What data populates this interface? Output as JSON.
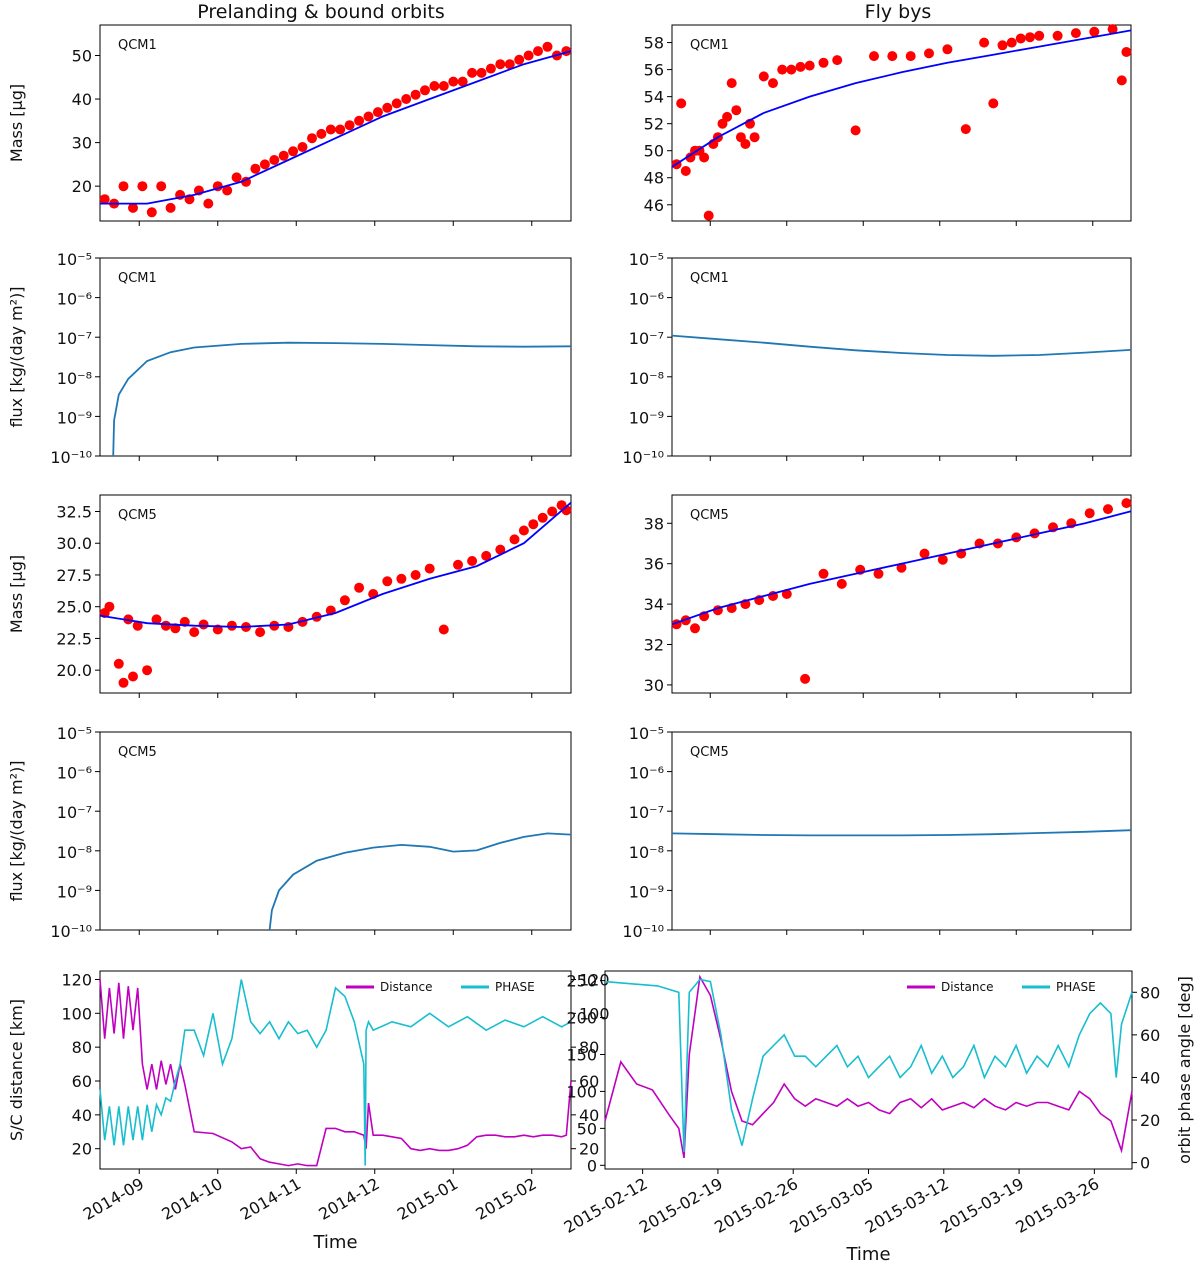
{
  "figure": {
    "col_titles": [
      "Prelanding & bound orbits",
      "Fly bys"
    ],
    "xlabel": "Time",
    "mass_ylabel": "Mass [µg]",
    "flux_ylabel": "flux [kg/(day m²)]",
    "flux_ytick_labels": [
      "10⁻⁵",
      "10⁻⁶",
      "10⁻⁷",
      "10⁻⁸",
      "10⁻⁹",
      "10⁻¹⁰"
    ],
    "dist_ylabel": "S/C distance [km]",
    "phase_ylabel": "orbit phase angle [deg]",
    "left_xticks": [
      "2014-09",
      "2014-10",
      "2014-11",
      "2014-12",
      "2015-01",
      "2015-02"
    ],
    "right_xticks": [
      "2015-02-12",
      "2015-02-19",
      "2015-02-26",
      "2015-03-05",
      "2015-03-12",
      "2015-03-19",
      "2015-03-26"
    ],
    "colors": {
      "scatter": "#ff0000",
      "fit": "#0000ff",
      "flux": "#1f77b4",
      "distance": "#c000c0",
      "phase": "#17becf"
    }
  },
  "chart_data": [
    {
      "id": "mass_qcm1_prelanding",
      "type": "scatter",
      "label": "QCM1",
      "ylabel": "Mass [µg]",
      "ylim": [
        12,
        57
      ],
      "yticks": [
        20,
        30,
        40,
        50
      ],
      "xlim": [
        0,
        100
      ],
      "scatter_x": [
        1,
        3,
        5,
        7,
        9,
        11,
        13,
        15,
        17,
        19,
        21,
        23,
        25,
        27,
        29,
        31,
        33,
        35,
        37,
        39,
        41,
        43,
        45,
        47,
        49,
        51,
        53,
        55,
        57,
        59,
        61,
        63,
        65,
        67,
        69,
        71,
        73,
        75,
        77,
        79,
        81,
        83,
        85,
        87,
        89,
        91,
        93,
        95,
        97,
        99
      ],
      "scatter_y": [
        17,
        16,
        20,
        15,
        20,
        14,
        20,
        15,
        18,
        17,
        19,
        16,
        20,
        19,
        22,
        21,
        24,
        25,
        26,
        27,
        28,
        29,
        31,
        32,
        33,
        33,
        34,
        35,
        36,
        37,
        38,
        39,
        40,
        41,
        42,
        43,
        43,
        44,
        44,
        46,
        46,
        47,
        48,
        48,
        49,
        50,
        51,
        52,
        50,
        51
      ],
      "fit": {
        "x": [
          0,
          10,
          20,
          30,
          40,
          50,
          60,
          70,
          80,
          90,
          100
        ],
        "y": [
          16,
          16,
          18,
          21,
          26,
          31,
          36,
          40,
          44,
          48,
          51
        ]
      }
    },
    {
      "id": "mass_qcm1_flybys",
      "type": "scatter",
      "label": "QCM1",
      "ylabel": "",
      "ylim": [
        44.8,
        59.3
      ],
      "yticks": [
        46,
        48,
        50,
        52,
        54,
        56,
        58
      ],
      "xlim": [
        0,
        100
      ],
      "scatter_x": [
        1,
        2,
        3,
        4,
        5,
        6,
        7,
        8,
        9,
        10,
        11,
        12,
        13,
        14,
        15,
        16,
        17,
        18,
        20,
        22,
        24,
        26,
        28,
        30,
        33,
        36,
        40,
        44,
        48,
        52,
        56,
        60,
        64,
        68,
        70,
        72,
        74,
        76,
        78,
        80,
        84,
        88,
        92,
        96,
        98,
        99
      ],
      "scatter_y": [
        49,
        53.5,
        48.5,
        49.5,
        50,
        50,
        49.5,
        45.2,
        50.5,
        51,
        52,
        52.5,
        55,
        53,
        51,
        50.5,
        52,
        51,
        55.5,
        55,
        56,
        56,
        56.2,
        56.3,
        56.5,
        56.7,
        51.5,
        57,
        57,
        57,
        57.2,
        57.5,
        51.6,
        58,
        53.5,
        57.8,
        58,
        58.3,
        58.4,
        58.5,
        58.5,
        58.7,
        58.8,
        59,
        55.2,
        57.3
      ],
      "fit": {
        "x": [
          0,
          10,
          20,
          30,
          40,
          50,
          60,
          70,
          80,
          90,
          100
        ],
        "y": [
          48.8,
          51,
          52.8,
          54,
          55,
          55.8,
          56.5,
          57.1,
          57.7,
          58.3,
          58.9
        ]
      }
    },
    {
      "id": "flux_qcm1_prelanding",
      "type": "line",
      "label": "QCM1",
      "yscale": "log",
      "ylim_log10": [
        -10,
        -5
      ],
      "xlim": [
        0,
        100
      ],
      "x": [
        2.8,
        3,
        4,
        6,
        10,
        15,
        20,
        30,
        40,
        50,
        60,
        70,
        80,
        90,
        100
      ],
      "log10_y": [
        -10,
        -9.1,
        -8.45,
        -8.05,
        -7.6,
        -7.38,
        -7.26,
        -7.17,
        -7.14,
        -7.15,
        -7.17,
        -7.2,
        -7.23,
        -7.24,
        -7.23
      ]
    },
    {
      "id": "flux_qcm1_flybys",
      "type": "line",
      "label": "QCM1",
      "yscale": "log",
      "ylim_log10": [
        -10,
        -5
      ],
      "xlim": [
        0,
        100
      ],
      "x": [
        0,
        10,
        20,
        30,
        40,
        50,
        60,
        70,
        80,
        90,
        100
      ],
      "log10_y": [
        -6.96,
        -7.05,
        -7.14,
        -7.24,
        -7.33,
        -7.4,
        -7.45,
        -7.47,
        -7.45,
        -7.39,
        -7.32
      ]
    },
    {
      "id": "mass_qcm5_prelanding",
      "type": "scatter",
      "label": "QCM5",
      "ylabel": "Mass [µg]",
      "ylim": [
        18.2,
        33.8
      ],
      "yticks": [
        20.0,
        22.5,
        25.0,
        27.5,
        30.0,
        32.5
      ],
      "xlim": [
        0,
        100
      ],
      "scatter_x": [
        1,
        2,
        4,
        5,
        6,
        7,
        8,
        10,
        12,
        14,
        16,
        18,
        20,
        22,
        25,
        28,
        31,
        34,
        37,
        40,
        43,
        46,
        49,
        52,
        55,
        58,
        61,
        64,
        67,
        70,
        73,
        76,
        79,
        82,
        85,
        88,
        90,
        92,
        94,
        96,
        98,
        99
      ],
      "scatter_y": [
        24.5,
        25,
        20.5,
        19,
        24,
        19.5,
        23.5,
        20,
        24,
        23.5,
        23.3,
        23.8,
        23,
        23.6,
        23.2,
        23.5,
        23.4,
        23,
        23.5,
        23.4,
        23.8,
        24.2,
        24.7,
        25.5,
        26.5,
        26,
        27,
        27.2,
        27.5,
        28,
        23.2,
        28.3,
        28.6,
        29,
        29.5,
        30.3,
        31,
        31.5,
        32,
        32.5,
        33,
        32.6
      ],
      "fit": {
        "x": [
          0,
          10,
          20,
          30,
          40,
          50,
          60,
          70,
          80,
          90,
          100
        ],
        "y": [
          24.3,
          23.7,
          23.5,
          23.4,
          23.6,
          24.5,
          26,
          27.2,
          28.2,
          30,
          33.2
        ]
      }
    },
    {
      "id": "mass_qcm5_flybys",
      "type": "scatter",
      "label": "QCM5",
      "ylabel": "",
      "ylim": [
        29.6,
        39.4
      ],
      "yticks": [
        30,
        32,
        34,
        36,
        38
      ],
      "xlim": [
        0,
        100
      ],
      "scatter_x": [
        1,
        3,
        5,
        7,
        10,
        13,
        16,
        19,
        22,
        25,
        29,
        33,
        37,
        41,
        45,
        50,
        55,
        59,
        63,
        67,
        71,
        75,
        79,
        83,
        87,
        91,
        95,
        99
      ],
      "scatter_y": [
        33,
        33.2,
        32.8,
        33.4,
        33.7,
        33.8,
        34,
        34.2,
        34.4,
        34.5,
        30.3,
        35.5,
        35,
        35.7,
        35.5,
        35.8,
        36.5,
        36.2,
        36.5,
        37,
        37,
        37.3,
        37.5,
        37.8,
        38,
        38.5,
        38.7,
        39
      ],
      "fit": {
        "x": [
          0,
          10,
          20,
          30,
          40,
          50,
          60,
          70,
          80,
          90,
          100
        ],
        "y": [
          33,
          33.8,
          34.4,
          35,
          35.5,
          36,
          36.5,
          37,
          37.5,
          38,
          38.6
        ]
      }
    },
    {
      "id": "flux_qcm5_prelanding",
      "type": "line",
      "label": "QCM5",
      "yscale": "log",
      "ylim_log10": [
        -10,
        -5
      ],
      "xlim": [
        0,
        100
      ],
      "x": [
        36,
        36.5,
        38,
        41,
        46,
        52,
        58,
        64,
        70,
        75,
        80,
        85,
        90,
        95,
        100
      ],
      "log10_y": [
        -10,
        -9.5,
        -9,
        -8.6,
        -8.25,
        -8.05,
        -7.92,
        -7.85,
        -7.9,
        -8.02,
        -7.99,
        -7.8,
        -7.65,
        -7.56,
        -7.59
      ]
    },
    {
      "id": "flux_qcm5_flybys",
      "type": "line",
      "label": "QCM5",
      "yscale": "log",
      "ylim_log10": [
        -10,
        -5
      ],
      "xlim": [
        0,
        100
      ],
      "x": [
        0,
        10,
        20,
        30,
        40,
        50,
        60,
        70,
        80,
        90,
        100
      ],
      "log10_y": [
        -7.56,
        -7.58,
        -7.6,
        -7.61,
        -7.61,
        -7.61,
        -7.6,
        -7.58,
        -7.55,
        -7.52,
        -7.48
      ]
    },
    {
      "id": "distance_phase_prelanding",
      "type": "line",
      "xlim": [
        0,
        100
      ],
      "ylabel": "S/C distance [km]",
      "ylim": [
        8,
        125
      ],
      "yticks": [
        20,
        40,
        60,
        80,
        100,
        120
      ],
      "y2label": "",
      "y2lim": [
        8,
        125
      ],
      "y2ticks": [
        20,
        40,
        60,
        80,
        100,
        120
      ],
      "series": [
        {
          "name": "Distance",
          "axis": "left",
          "x": [
            0,
            1,
            2,
            3,
            4,
            5,
            6,
            7,
            8,
            9,
            10,
            11,
            12,
            13,
            14,
            15,
            16,
            17,
            18,
            20,
            24,
            28,
            30,
            32,
            34,
            36,
            38,
            40,
            42,
            44,
            46,
            48,
            50,
            52,
            54,
            56,
            56.5,
            57,
            58,
            60,
            62,
            64,
            66,
            68,
            70,
            72,
            74,
            76,
            78,
            80,
            82,
            84,
            86,
            88,
            90,
            92,
            94,
            96,
            98,
            99,
            100
          ],
          "y": [
            120,
            85,
            115,
            88,
            118,
            85,
            116,
            90,
            115,
            70,
            55,
            70,
            55,
            72,
            58,
            70,
            55,
            70,
            58,
            30,
            29,
            24,
            20,
            21,
            14,
            12,
            11,
            10,
            11,
            10,
            10,
            32,
            32,
            30,
            30,
            28,
            20,
            47,
            28,
            28,
            27,
            26,
            20,
            19,
            20,
            19,
            19,
            20,
            22,
            27,
            28,
            28,
            27,
            27,
            28,
            27,
            28,
            28,
            27,
            28,
            60
          ]
        },
        {
          "name": "PHASE",
          "axis": "right",
          "x": [
            0,
            1,
            2,
            3,
            4,
            5,
            6,
            7,
            8,
            9,
            10,
            11,
            12,
            13,
            14,
            15,
            16,
            17,
            18,
            20,
            22,
            24,
            26,
            28,
            30,
            32,
            34,
            36,
            38,
            40,
            42,
            44,
            46,
            48,
            50,
            52,
            54,
            56,
            56.3,
            56.5,
            57,
            58,
            62,
            66,
            70,
            74,
            78,
            82,
            86,
            90,
            94,
            98,
            100
          ],
          "y": [
            55,
            25,
            45,
            22,
            45,
            22,
            45,
            25,
            45,
            25,
            46,
            30,
            46,
            40,
            50,
            48,
            60,
            70,
            90,
            90,
            75,
            100,
            70,
            85,
            120,
            95,
            88,
            95,
            85,
            95,
            88,
            90,
            80,
            90,
            115,
            110,
            95,
            70,
            10,
            90,
            95,
            90,
            95,
            92,
            100,
            92,
            98,
            90,
            96,
            92,
            98,
            92,
            95
          ]
        }
      ]
    },
    {
      "id": "distance_phase_flybys",
      "type": "line",
      "xlim": [
        0,
        100
      ],
      "ylabel": "",
      "ylim": [
        -5,
        263
      ],
      "yticks": [
        0,
        50,
        100,
        150,
        200,
        250
      ],
      "y2label": "orbit phase angle [deg]",
      "y2lim": [
        -3,
        90
      ],
      "y2ticks": [
        0,
        20,
        40,
        60,
        80
      ],
      "series": [
        {
          "name": "Distance",
          "axis": "left",
          "x": [
            0,
            3,
            6,
            9,
            12,
            14,
            15,
            16,
            18,
            20,
            22,
            24,
            26,
            28,
            30,
            32,
            34,
            36,
            38,
            40,
            42,
            44,
            46,
            48,
            50,
            52,
            54,
            56,
            58,
            60,
            62,
            64,
            66,
            68,
            70,
            72,
            74,
            76,
            78,
            80,
            82,
            84,
            86,
            88,
            90,
            92,
            94,
            96,
            98,
            100
          ],
          "y": [
            60,
            140,
            110,
            102,
            70,
            50,
            10,
            150,
            255,
            230,
            170,
            100,
            60,
            55,
            70,
            85,
            110,
            90,
            80,
            90,
            85,
            80,
            90,
            80,
            85,
            75,
            70,
            85,
            90,
            78,
            90,
            75,
            80,
            85,
            78,
            90,
            80,
            75,
            85,
            80,
            85,
            85,
            80,
            75,
            100,
            90,
            70,
            60,
            20,
            100
          ]
        },
        {
          "name": "PHASE",
          "axis": "right",
          "x": [
            0,
            5,
            10,
            14,
            15,
            16,
            18,
            20,
            22,
            24,
            26,
            28,
            30,
            32,
            34,
            36,
            38,
            40,
            42,
            44,
            46,
            48,
            50,
            52,
            54,
            56,
            58,
            60,
            62,
            64,
            66,
            68,
            70,
            72,
            74,
            76,
            78,
            80,
            82,
            84,
            86,
            88,
            90,
            92,
            94,
            96,
            97,
            98,
            100
          ],
          "y": [
            85,
            84,
            83,
            80,
            5,
            80,
            86,
            85,
            60,
            25,
            8,
            30,
            50,
            55,
            60,
            50,
            50,
            45,
            50,
            55,
            45,
            50,
            40,
            45,
            50,
            40,
            45,
            55,
            42,
            50,
            40,
            45,
            55,
            40,
            50,
            45,
            55,
            42,
            50,
            45,
            55,
            45,
            60,
            70,
            75,
            70,
            40,
            65,
            80
          ]
        }
      ]
    }
  ]
}
